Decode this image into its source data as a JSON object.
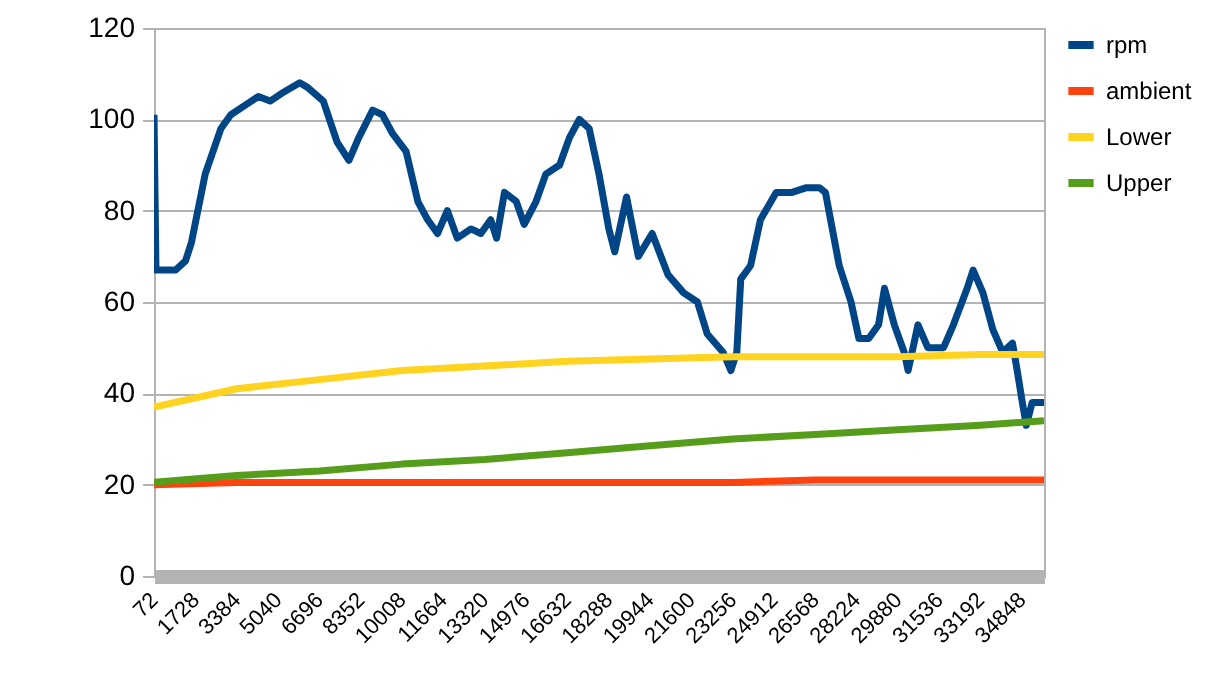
{
  "chart_data": {
    "type": "line",
    "xlim": [
      72,
      35736
    ],
    "xticks": [
      72,
      1728,
      3384,
      5040,
      6696,
      8352,
      10008,
      11664,
      13320,
      14976,
      16632,
      18288,
      19944,
      21600,
      23256,
      24912,
      26568,
      28224,
      29880,
      31536,
      33192,
      34848
    ],
    "ylim": [
      0,
      120
    ],
    "yticks": [
      0,
      20,
      40,
      60,
      80,
      100,
      120
    ],
    "grid": "y",
    "legend": "right",
    "line_style": "solid",
    "marker": "none",
    "series": [
      {
        "name": "rpm",
        "color": "#004586",
        "x": [
          72,
          151,
          940,
          1334,
          1571,
          2123,
          2755,
          3149,
          3701,
          4254,
          4727,
          5279,
          5911,
          6226,
          6857,
          7410,
          7883,
          8278,
          8830,
          9224,
          9619,
          10171,
          10645,
          11039,
          11434,
          11828,
          12223,
          12775,
          13170,
          13564,
          13801,
          14117,
          14590,
          14906,
          15379,
          15774,
          16326,
          16721,
          17116,
          17510,
          17905,
          18298,
          18535,
          19008,
          19481,
          20034,
          20665,
          21296,
          21848,
          22243,
          22874,
          23190,
          23426,
          23584,
          23979,
          24373,
          25004,
          25636,
          26188,
          26740,
          26977,
          27529,
          28003,
          28319,
          28713,
          29107,
          29344,
          29738,
          30133,
          30291,
          30686,
          31080,
          31711,
          32106,
          32658,
          32895,
          33290,
          33684,
          34079,
          34473,
          34631,
          34868,
          35026,
          35263,
          35736
        ],
        "values": [
          101,
          67,
          67,
          69,
          73,
          88,
          98,
          101,
          103,
          105,
          104,
          106,
          108,
          107,
          104,
          95,
          91,
          96,
          102,
          101,
          97,
          93,
          82,
          78,
          75,
          80,
          74,
          76,
          75,
          78,
          74,
          84,
          82,
          77,
          82,
          88,
          90,
          96,
          100,
          98,
          88,
          76,
          71,
          83,
          70,
          75,
          66,
          62,
          60,
          53,
          49,
          45,
          49,
          65,
          68,
          78,
          84,
          84,
          85,
          85,
          84,
          68,
          60,
          52,
          52,
          55,
          63,
          55,
          49,
          45,
          55,
          50,
          50,
          55,
          63,
          67,
          62,
          54,
          49,
          51,
          46,
          38,
          33,
          38,
          38
        ]
      },
      {
        "name": "ambient",
        "color": "#ff420e",
        "x": [
          72,
          3384,
          6696,
          10008,
          13320,
          16632,
          19944,
          23256,
          26568,
          29880,
          33192,
          35736
        ],
        "values": [
          20,
          20.5,
          20.5,
          20.5,
          20.5,
          20.5,
          20.5,
          20.5,
          21,
          21,
          21,
          21
        ]
      },
      {
        "name": "Lower",
        "color": "#ffd320",
        "x": [
          72,
          3384,
          6696,
          10008,
          13320,
          16632,
          19944,
          23256,
          26568,
          29880,
          33192,
          35736
        ],
        "values": [
          37,
          41,
          43,
          45,
          46,
          47,
          47.5,
          48,
          48,
          48,
          48.5,
          48.5
        ]
      },
      {
        "name": "Upper",
        "color": "#579d1c",
        "x": [
          72,
          3384,
          6696,
          10008,
          13320,
          16632,
          19944,
          23256,
          26568,
          29880,
          33192,
          35736
        ],
        "values": [
          20.5,
          22,
          23,
          24.5,
          25.5,
          27,
          28.5,
          30,
          31,
          32,
          33,
          34
        ]
      }
    ]
  }
}
